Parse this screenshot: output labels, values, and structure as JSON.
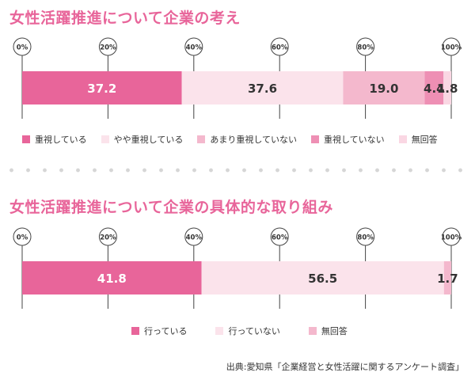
{
  "chart_data": [
    {
      "type": "bar",
      "orientation": "horizontal-stacked",
      "title": "女性活躍推進について企業の考え",
      "xlim": [
        0,
        100
      ],
      "ticks": [
        "0%",
        "20%",
        "40%",
        "60%",
        "80%",
        "100%"
      ],
      "grid": true,
      "legend_position": "bottom",
      "series": [
        {
          "name": "重視している",
          "value": 37.2,
          "label": "37.2",
          "color": "#e8659a",
          "label_color": "#ffffff"
        },
        {
          "name": "やや重視している",
          "value": 37.6,
          "label": "37.6",
          "color": "#fbe3eb",
          "label_color": "#333333"
        },
        {
          "name": "あまり重視していない",
          "value": 19.0,
          "label": "19.0",
          "color": "#f4b8cd",
          "label_color": "#333333"
        },
        {
          "name": "重視していない",
          "value": 4.4,
          "label": "4.4",
          "color": "#ee8fb4",
          "label_color": "#333333"
        },
        {
          "name": "無回答",
          "value": 1.8,
          "label": "1.8",
          "color": "#fad7e3",
          "label_color": "#333333"
        }
      ]
    },
    {
      "type": "bar",
      "orientation": "horizontal-stacked",
      "title": "女性活躍推進について企業の具体的な取り組み",
      "xlim": [
        0,
        100
      ],
      "ticks": [
        "0%",
        "20%",
        "40%",
        "60%",
        "80%",
        "100%"
      ],
      "grid": true,
      "legend_position": "bottom",
      "series": [
        {
          "name": "行っている",
          "value": 41.8,
          "label": "41.8",
          "color": "#e8659a",
          "label_color": "#ffffff"
        },
        {
          "name": "行っていない",
          "value": 56.5,
          "label": "56.5",
          "color": "#fbe3eb",
          "label_color": "#333333"
        },
        {
          "name": "無回答",
          "value": 1.7,
          "label": "1.7",
          "color": "#f4b8cd",
          "label_color": "#333333"
        }
      ]
    }
  ],
  "source": "出典:愛知県「企業経営と女性活躍に関するアンケート調査」"
}
